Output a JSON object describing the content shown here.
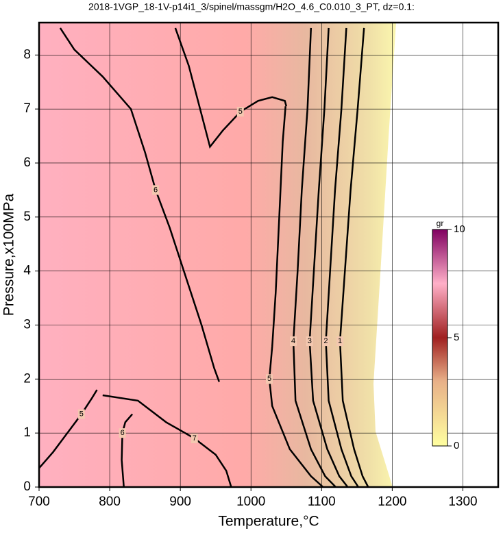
{
  "chart_data": {
    "type": "contour",
    "title": "2018-1VGP_18-1V-p14i1_3/spinel/massgm/H2O_4.6_C0.010_3_PT, dz=0.1:",
    "x_label": "Temperature,°C",
    "y_label": "Pressure,x100MPa",
    "xlim": [
      700,
      1350
    ],
    "ylim": [
      0,
      8.6
    ],
    "xticks": [
      700,
      800,
      900,
      1000,
      1100,
      1200,
      1300
    ],
    "yticks": [
      0,
      1,
      2,
      3,
      4,
      5,
      6,
      7,
      8
    ],
    "grid": true,
    "contours": [
      {
        "level": 6,
        "x": [
          730,
          750,
          790,
          830,
          850,
          865,
          885,
          905,
          930,
          948,
          955
        ],
        "y": [
          8.5,
          8.1,
          7.6,
          7.0,
          6.2,
          5.5,
          4.8,
          4.0,
          3.0,
          2.2,
          1.95
        ]
      },
      {
        "level": 5,
        "x": [
          893,
          912,
          928,
          942,
          960,
          985,
          1010,
          1030,
          1048,
          1050
        ],
        "y": [
          8.5,
          7.8,
          7.0,
          6.3,
          6.6,
          6.95,
          7.15,
          7.22,
          7.15,
          7.05
        ]
      },
      {
        "level": 5,
        "x": [
          1049,
          1045,
          1040,
          1035,
          1030,
          1026,
          1030,
          1055,
          1085,
          1102
        ],
        "y": [
          7.05,
          6.4,
          5.0,
          3.6,
          2.6,
          2.0,
          1.5,
          0.7,
          0.2,
          0
        ]
      },
      {
        "level": 4,
        "x": [
          1085,
          1080,
          1072,
          1066,
          1060,
          1063,
          1085,
          1105,
          1120
        ],
        "y": [
          8.5,
          7.0,
          5.5,
          4.0,
          2.7,
          1.6,
          0.7,
          0.2,
          0
        ]
      },
      {
        "level": 3,
        "x": [
          1110,
          1104,
          1096,
          1089,
          1083,
          1088,
          1108,
          1125,
          1137
        ],
        "y": [
          8.5,
          7.0,
          5.5,
          4.0,
          2.7,
          1.6,
          0.7,
          0.2,
          0
        ]
      },
      {
        "level": 2,
        "x": [
          1135,
          1128,
          1119,
          1112,
          1106,
          1110,
          1128,
          1142,
          1152
        ],
        "y": [
          8.5,
          7.0,
          5.5,
          4.0,
          2.7,
          1.6,
          0.7,
          0.2,
          0
        ]
      },
      {
        "level": 1,
        "x": [
          1160,
          1151,
          1141,
          1133,
          1126,
          1130,
          1146,
          1158,
          1166
        ],
        "y": [
          8.5,
          7.0,
          5.5,
          4.0,
          2.7,
          1.6,
          0.7,
          0.2,
          0
        ]
      },
      {
        "level": 5,
        "x": [
          700,
          720,
          740,
          760,
          775,
          782
        ],
        "y": [
          0.35,
          0.65,
          1.0,
          1.35,
          1.65,
          1.8
        ]
      },
      {
        "level": 6,
        "x": [
          820,
          817,
          818,
          822,
          832
        ],
        "y": [
          0,
          0.5,
          1.0,
          1.2,
          1.35
        ]
      },
      {
        "level": 7,
        "x": [
          790,
          840,
          880,
          920,
          950,
          965,
          972
        ],
        "y": [
          1.7,
          1.6,
          1.2,
          0.9,
          0.6,
          0.3,
          0
        ]
      }
    ],
    "colorbar": {
      "label": "gr",
      "lim": [
        0,
        10
      ],
      "ticks": [
        0,
        5,
        10
      ]
    }
  }
}
